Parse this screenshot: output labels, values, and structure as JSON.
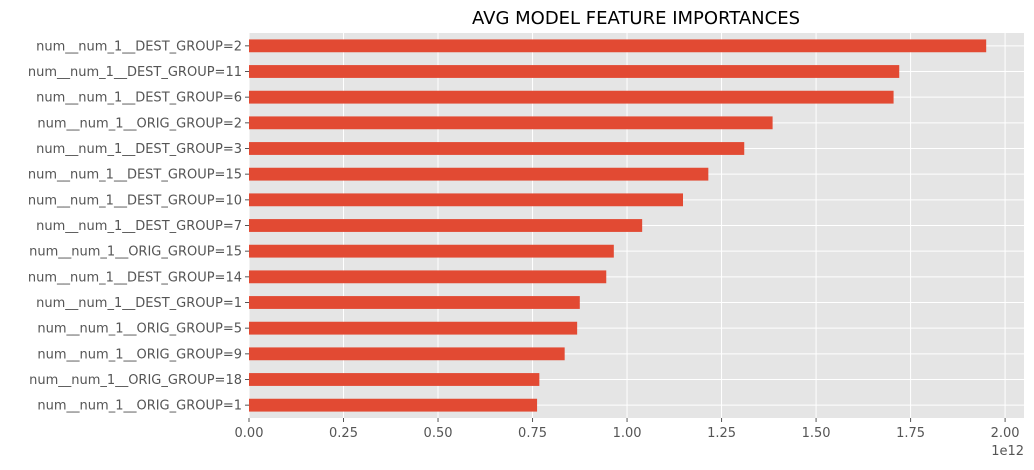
{
  "chart_data": {
    "type": "bar",
    "orientation": "horizontal",
    "title": "AVG MODEL FEATURE IMPORTANCES",
    "xlabel": "",
    "ylabel": "",
    "x_offset_label": "1e12",
    "xlim": [
      0,
      2.05
    ],
    "x_ticks": [
      0.0,
      0.25,
      0.5,
      0.75,
      1.0,
      1.25,
      1.5,
      1.75,
      2.0
    ],
    "x_tick_labels": [
      "0.00",
      "0.25",
      "0.50",
      "0.75",
      "1.00",
      "1.25",
      "1.50",
      "1.75",
      "2.00"
    ],
    "grid": true,
    "background": "#e5e5e5",
    "bar_color": "#e24a33",
    "categories": [
      "num__num_1__DEST_GROUP=2",
      "num__num_1__DEST_GROUP=11",
      "num__num_1__DEST_GROUP=6",
      "num__num_1__ORIG_GROUP=2",
      "num__num_1__DEST_GROUP=3",
      "num__num_1__DEST_GROUP=15",
      "num__num_1__DEST_GROUP=10",
      "num__num_1__DEST_GROUP=7",
      "num__num_1__ORIG_GROUP=15",
      "num__num_1__DEST_GROUP=14",
      "num__num_1__DEST_GROUP=1",
      "num__num_1__ORIG_GROUP=5",
      "num__num_1__ORIG_GROUP=9",
      "num__num_1__ORIG_GROUP=18",
      "num__num_1__ORIG_GROUP=1"
    ],
    "values": [
      1.95,
      1.72,
      1.705,
      1.385,
      1.31,
      1.215,
      1.148,
      1.04,
      0.965,
      0.945,
      0.875,
      0.868,
      0.835,
      0.768,
      0.762
    ]
  }
}
